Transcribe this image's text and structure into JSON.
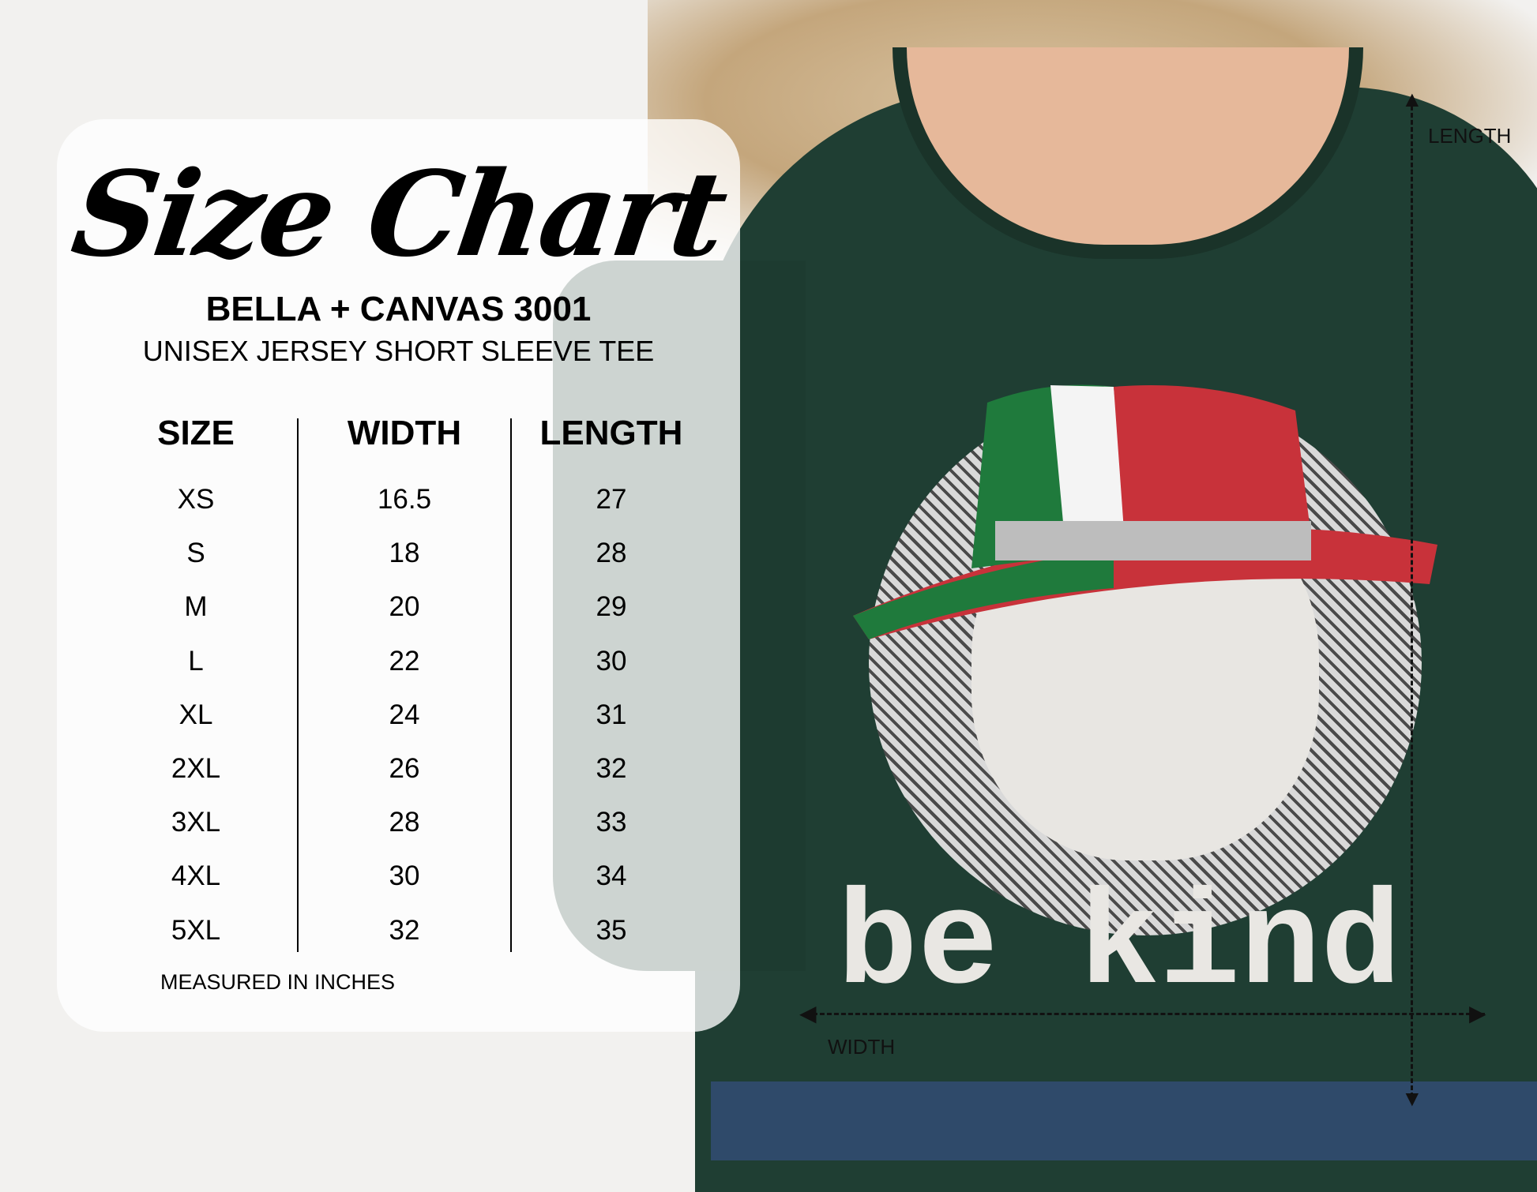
{
  "title": "Size Chart",
  "brand": "BELLA + CANVAS 3001",
  "product": "UNISEX JERSEY SHORT SLEEVE TEE",
  "table": {
    "headers": [
      "SIZE",
      "WIDTH",
      "LENGTH"
    ],
    "rows": [
      [
        "XS",
        "16.5",
        "27"
      ],
      [
        "S",
        "18",
        "28"
      ],
      [
        "M",
        "20",
        "29"
      ],
      [
        "L",
        "22",
        "30"
      ],
      [
        "XL",
        "24",
        "31"
      ],
      [
        "2XL",
        "26",
        "32"
      ],
      [
        "3XL",
        "28",
        "33"
      ],
      [
        "4XL",
        "30",
        "34"
      ],
      [
        "5XL",
        "32",
        "35"
      ]
    ]
  },
  "note": "MEASURED IN INCHES",
  "shirt": {
    "print_text": "be kind",
    "length_label": "LENGTH",
    "width_label": "WIDTH",
    "color": "#1f3e33"
  }
}
